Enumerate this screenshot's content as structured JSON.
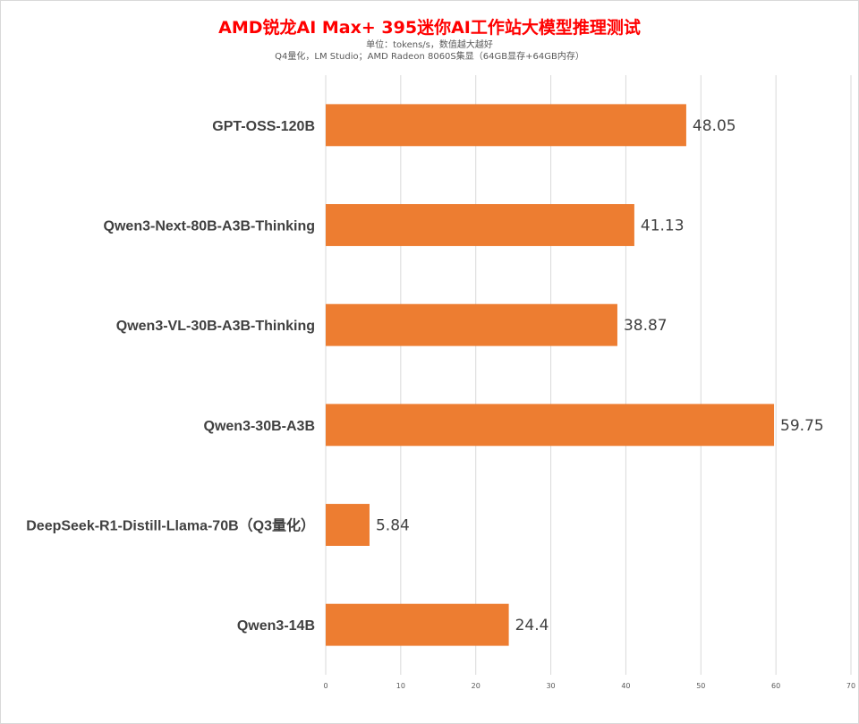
{
  "chart_data": {
    "type": "bar",
    "orientation": "horizontal",
    "title": "AMD锐龙AI Max+ 395迷你AI工作站大模型推理测试",
    "subtitle_lines": [
      "单位：tokens/s，数值越大越好",
      "Q4量化，LM Studio；AMD Radeon 8060S集显（64GB显存+64GB内存）"
    ],
    "categories": [
      "GPT-OSS-120B",
      "Qwen3-Next-80B-A3B-Thinking",
      "Qwen3-VL-30B-A3B-Thinking",
      "Qwen3-30B-A3B",
      "DeepSeek-R1-Distill-Llama-70B（Q3量化）",
      "Qwen3-14B"
    ],
    "values": [
      48.05,
      41.13,
      38.87,
      59.75,
      5.84,
      24.4
    ],
    "value_labels": [
      "48.05",
      "41.13",
      "38.87",
      "59.75",
      "5.84",
      "24.4"
    ],
    "xlim": [
      0,
      70
    ],
    "x_ticks": [
      0,
      10,
      20,
      30,
      40,
      50,
      60,
      70
    ],
    "xlabel": "",
    "ylabel": "",
    "bar_color": "#ed7d31",
    "grid": true,
    "legend": "none"
  }
}
